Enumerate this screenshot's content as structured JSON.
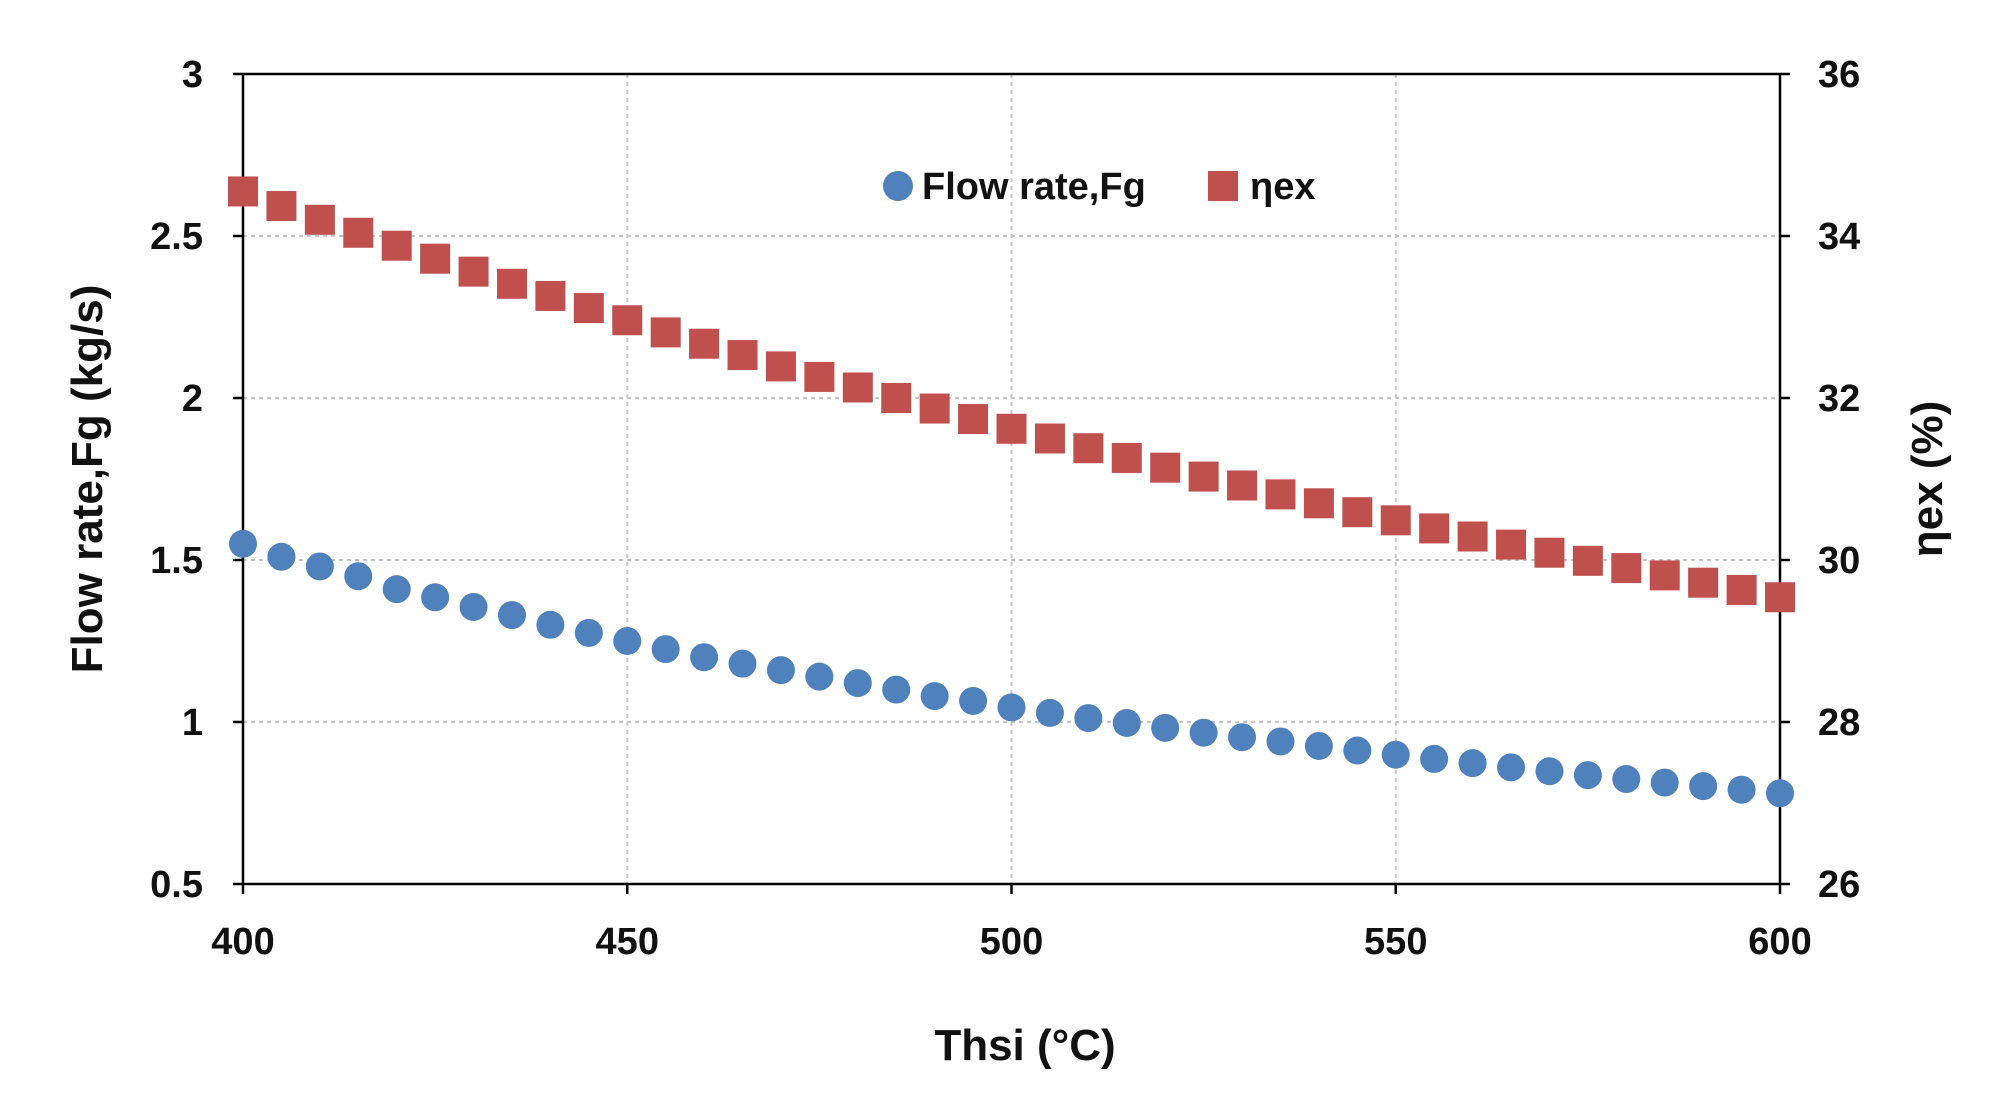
{
  "chart_data": {
    "type": "scatter",
    "title": "",
    "xlabel": "Thsi (°C)",
    "ylabel_left": "Flow rate,Fg (kg/s)",
    "ylabel_right": "ηex (%)",
    "xlim": [
      400,
      600
    ],
    "ylim_left": [
      0.5,
      3
    ],
    "ylim_right": [
      26,
      36
    ],
    "x_ticks": [
      400,
      450,
      500,
      550,
      600
    ],
    "y_left_ticks": [
      "0.5",
      "1",
      "1.5",
      "2",
      "2.5",
      "3"
    ],
    "y_right_ticks": [
      "26",
      "28",
      "30",
      "32",
      "34",
      "36"
    ],
    "grid": true,
    "legend_position": "top-center",
    "x": [
      400,
      405,
      410,
      415,
      420,
      425,
      430,
      435,
      440,
      445,
      450,
      455,
      460,
      465,
      470,
      475,
      480,
      485,
      490,
      495,
      500,
      505,
      510,
      515,
      520,
      525,
      530,
      535,
      540,
      545,
      550,
      555,
      560,
      565,
      570,
      575,
      580,
      585,
      590,
      595,
      600
    ],
    "series": [
      {
        "name": "Flow rate,Fg",
        "axis": "left",
        "marker": "circle",
        "color": "#4F81BD",
        "values": [
          1.55,
          1.51,
          1.48,
          1.45,
          1.41,
          1.385,
          1.355,
          1.33,
          1.3,
          1.275,
          1.25,
          1.225,
          1.2,
          1.18,
          1.16,
          1.14,
          1.12,
          1.1,
          1.08,
          1.065,
          1.045,
          1.028,
          1.012,
          0.997,
          0.982,
          0.967,
          0.953,
          0.94,
          0.926,
          0.912,
          0.899,
          0.886,
          0.873,
          0.86,
          0.848,
          0.836,
          0.824,
          0.813,
          0.802,
          0.791,
          0.78
        ]
      },
      {
        "name": "ηex",
        "axis": "right",
        "marker": "square",
        "color": "#C0504D",
        "values": [
          34.55,
          34.37,
          34.2,
          34.04,
          33.88,
          33.72,
          33.56,
          33.41,
          33.26,
          33.11,
          32.96,
          32.81,
          32.67,
          32.53,
          32.39,
          32.26,
          32.13,
          32.0,
          31.87,
          31.74,
          31.62,
          31.5,
          31.38,
          31.26,
          31.14,
          31.03,
          30.92,
          30.81,
          30.7,
          30.59,
          30.49,
          30.39,
          30.29,
          30.19,
          30.09,
          29.99,
          29.9,
          29.81,
          29.72,
          29.63,
          29.54
        ]
      }
    ]
  }
}
